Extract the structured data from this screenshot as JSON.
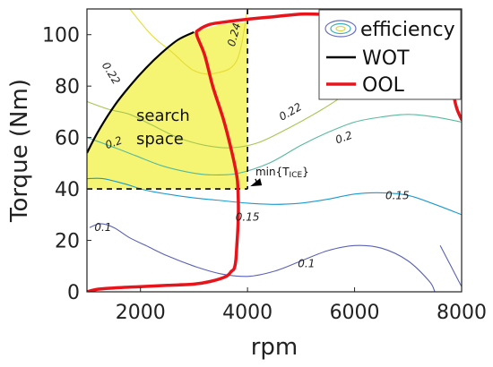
{
  "chart_data": {
    "type": "line",
    "xlabel": "rpm",
    "ylabel": "Torque (Nm)",
    "xlim": [
      1000,
      8000
    ],
    "ylim": [
      0,
      110
    ],
    "xticks": [
      2000,
      4000,
      6000,
      8000
    ],
    "yticks": [
      0,
      20,
      40,
      60,
      80,
      100
    ],
    "grid": false,
    "legend": {
      "placement": "top-right",
      "entries": [
        {
          "label": "efficiency",
          "color": "#7777cc",
          "kind": "contour"
        },
        {
          "label": "WOT",
          "color": "#000000",
          "kind": "line"
        },
        {
          "label": "OOL",
          "color": "#e8141b",
          "kind": "line"
        }
      ]
    },
    "series": [
      {
        "name": "WOT",
        "color": "#000000",
        "x": [
          1000,
          1200,
          1500,
          1800,
          2100,
          2400,
          2700,
          3000
        ],
        "y": [
          54,
          62,
          72,
          80,
          87,
          93,
          98,
          101
        ]
      },
      {
        "name": "OOL",
        "color": "#e8141b",
        "x": [
          1000,
          1200,
          1500,
          2000,
          2500,
          3000,
          3300,
          3600,
          3700,
          3750,
          3780,
          3800,
          3820,
          3830,
          3820,
          3800,
          3700,
          3550,
          3350,
          3200,
          3050,
          3100,
          3300,
          3600,
          4000,
          4500,
          5000,
          5500,
          6000,
          6500,
          7000,
          7300,
          7500,
          7700,
          7800,
          7900,
          8000
        ],
        "y": [
          0,
          1,
          1.5,
          2,
          2.5,
          3,
          4,
          6,
          8,
          9,
          12,
          18,
          25,
          32,
          40,
          45,
          55,
          67,
          80,
          92,
          100,
          102,
          104,
          105,
          106,
          107,
          108,
          108,
          109,
          110,
          110,
          109,
          104,
          93,
          82,
          72,
          67
        ]
      }
    ],
    "efficiency_contours": [
      {
        "level": "0.1",
        "color": "#5a62b4",
        "curves": [
          {
            "x": [
              1050,
              1250,
              1500,
              1800,
              2100,
              2500,
              3000,
              3500,
              4000,
              4500,
              5000,
              5500,
              6000,
              6500,
              7000,
              7400,
              7500
            ],
            "y": [
              25,
              26.5,
              25,
              21,
              18,
              14,
              10,
              7,
              6,
              8,
              12,
              16,
              18,
              17,
              12,
              4,
              0
            ]
          },
          {
            "x": [
              7600,
              7800,
              8000
            ],
            "y": [
              18,
              10,
              2
            ]
          }
        ]
      },
      {
        "level": "0.15",
        "color": "#1a9bd0",
        "curves": [
          {
            "x": [
              1000,
              1300,
              1700,
              2100,
              2500,
              3000,
              3500,
              4000,
              4500,
              5000,
              5500,
              6000,
              6500,
              7000,
              7500,
              8000
            ],
            "y": [
              44,
              44,
              42,
              39.5,
              38,
              36.5,
              35.5,
              34.5,
              34,
              34.5,
              36,
              38,
              38.5,
              37.5,
              34,
              30
            ]
          }
        ]
      },
      {
        "level": "0.2",
        "color": "#57ba9c",
        "curves": [
          {
            "x": [
              1000,
              1400,
              1900,
              2400,
              2900,
              3300,
              3800,
              4400,
              5000,
              5500,
              6000,
              6500,
              7000,
              7500,
              8000
            ],
            "y": [
              60,
              57,
              53,
              49,
              46.5,
              45.5,
              46,
              50,
              57,
              62,
              66,
              68,
              69,
              68,
              66
            ]
          }
        ]
      },
      {
        "level": "0.22",
        "color": "#a6c651",
        "curves": [
          {
            "x": [
              1000,
              1400,
              1800,
              2200,
              2700,
              3200,
              3700,
              4200,
              4800,
              5400,
              6000,
              6600,
              7100,
              7500,
              7800
            ],
            "y": [
              74,
              71,
              69,
              65,
              60,
              57,
              56,
              58,
              64,
              71,
              79,
              86,
              94,
              101,
              106
            ]
          }
        ]
      },
      {
        "level": "0.24",
        "color": "#e4dc33",
        "curves": [
          {
            "x": [
              1800,
              2200,
              2600,
              3000,
              3400,
              3800,
              4000
            ],
            "y": [
              110,
              100,
              93,
              86,
              85,
              90,
              110
            ]
          },
          {
            "x": [
              6300,
              6700,
              7000,
              7300,
              7600
            ],
            "y": [
              110,
              101,
              96,
              94,
              95
            ]
          }
        ]
      }
    ],
    "contour_labels": [
      {
        "text": "0.1",
        "x": 1300,
        "y": 25
      },
      {
        "text": "0.1",
        "x": 5100,
        "y": 11
      },
      {
        "text": "0.15",
        "x": 4000,
        "y": 29
      },
      {
        "text": "0.15",
        "x": 6800,
        "y": 37.5
      },
      {
        "text": "0.2",
        "x": 5800,
        "y": 60
      },
      {
        "text": "0.2",
        "x": 1500,
        "y": 58
      },
      {
        "text": "0.22",
        "x": 1450,
        "y": 85
      },
      {
        "text": "0.22",
        "x": 4800,
        "y": 70
      },
      {
        "text": "0.24",
        "x": 3750,
        "y": 100
      }
    ],
    "search_space": {
      "label_line1": "search",
      "label_line2": "space",
      "fill_color": "#f3f35a",
      "x_max": 4000,
      "y_min": 40
    },
    "annotation": {
      "prefix": "min{T",
      "subscript": "ICE",
      "suffix": "}",
      "target": {
        "x": 4000,
        "y": 40
      },
      "text_at": {
        "x": 4650,
        "y": 46
      }
    }
  }
}
